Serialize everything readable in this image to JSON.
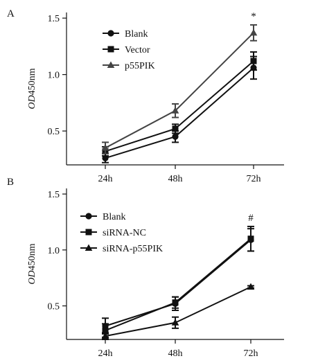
{
  "chart_data": [
    {
      "panel_label": "A",
      "type": "line",
      "ylabel_italic": "OD",
      "ylabel_rest": "450nm",
      "categories": [
        "24h",
        "48h",
        "72h"
      ],
      "yticks": [
        "0.5",
        "1.0",
        "1.5"
      ],
      "ylim": [
        0.2,
        1.55
      ],
      "annotation": {
        "text": "*",
        "category": "72h"
      },
      "legend_position": "top-left",
      "series": [
        {
          "name": "Blank",
          "marker": "circle",
          "color": "#111111",
          "values": [
            0.26,
            0.45,
            1.06
          ],
          "errors": [
            0.04,
            0.05,
            0.1
          ]
        },
        {
          "name": "Vector",
          "marker": "square",
          "color": "#111111",
          "values": [
            0.32,
            0.52,
            1.12
          ],
          "errors": [
            0.04,
            0.04,
            0.08
          ]
        },
        {
          "name": "p55PIK",
          "marker": "triangle",
          "color": "#444444",
          "values": [
            0.35,
            0.68,
            1.37
          ],
          "errors": [
            0.05,
            0.06,
            0.07
          ]
        }
      ]
    },
    {
      "panel_label": "B",
      "type": "line",
      "ylabel_italic": "OD",
      "ylabel_rest": "450nm",
      "categories": [
        "24h",
        "48h",
        "72h"
      ],
      "yticks": [
        "0.5",
        "1.0",
        "1.5"
      ],
      "ylim": [
        0.2,
        1.55
      ],
      "annotation": {
        "text": "#",
        "category": "72h"
      },
      "legend_position": "top-left",
      "series": [
        {
          "name": "Blank",
          "marker": "circle",
          "color": "#111111",
          "values": [
            0.32,
            0.52,
            1.09
          ],
          "errors": [
            0.07,
            0.06,
            0.1
          ]
        },
        {
          "name": "siRNA-NC",
          "marker": "square",
          "color": "#111111",
          "values": [
            0.28,
            0.53,
            1.1
          ],
          "errors": [
            0.06,
            0.05,
            0.11
          ]
        },
        {
          "name": "siRNA-p55PIK",
          "marker": "triangle",
          "color": "#111111",
          "values": [
            0.23,
            0.35,
            0.67
          ],
          "errors": [
            0.03,
            0.05,
            0.01
          ]
        }
      ]
    }
  ]
}
